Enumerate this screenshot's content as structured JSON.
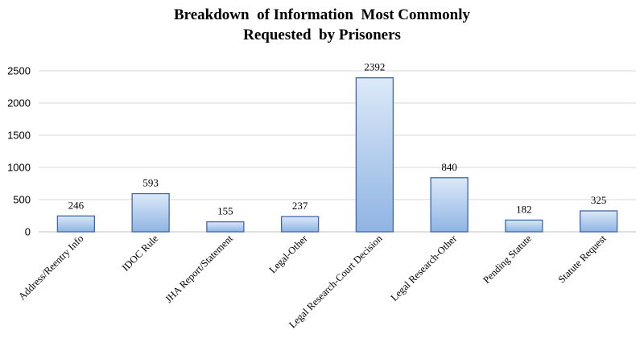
{
  "chart_data": {
    "type": "bar",
    "title": "Breakdown  of Information  Most Commonly\nRequested  by Prisoners",
    "title_lines": [
      "Breakdown  of Information  Most Commonly",
      "Requested  by Prisoners"
    ],
    "xlabel": "",
    "ylabel": "",
    "categories": [
      "Address/Reentry Info",
      "IDOC Rule",
      "JHA Report/Statement",
      "Legal-Other",
      "Legal Research-Court Decision",
      "Legal Research-Other",
      "Pending Statute",
      "Statute Request"
    ],
    "values": [
      246,
      593,
      155,
      237,
      2392,
      840,
      182,
      325
    ],
    "data_labels": [
      "246",
      "593",
      "155",
      "237",
      "2392",
      "840",
      "182",
      "325"
    ],
    "ylim": [
      0,
      2500
    ],
    "yticks": [
      "0",
      "500",
      "1000",
      "1500",
      "2000",
      "2500"
    ],
    "ytick_values": [
      0,
      500,
      1000,
      1500,
      2000,
      2500
    ],
    "grid": true,
    "legend": "none",
    "colors": {
      "bar_top": "#dce9f8",
      "bar_bottom": "#8fb4e3",
      "bar_stroke": "#3e68a8",
      "grid": "#d9d9d9",
      "axis": "#bfbfbf"
    }
  }
}
